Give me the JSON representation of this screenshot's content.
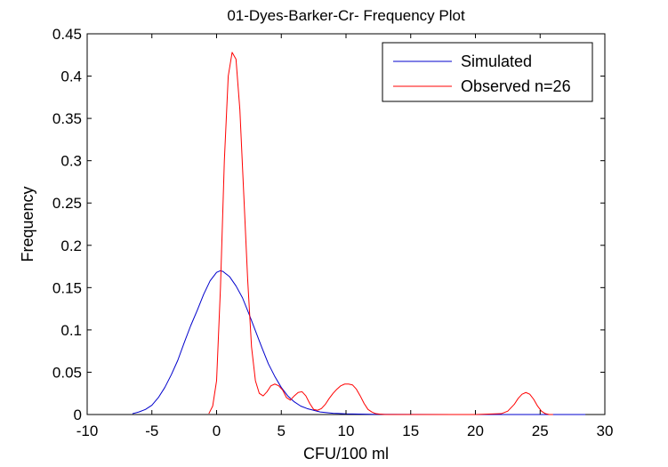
{
  "chart_data": {
    "type": "line",
    "title": "01-Dyes-Barker-Cr- Frequency Plot",
    "xlabel": "CFU/100 ml",
    "ylabel": "Frequency",
    "xlim": [
      -10,
      30
    ],
    "ylim": [
      0,
      0.45
    ],
    "xticks": [
      -10,
      -5,
      0,
      5,
      10,
      15,
      20,
      25,
      30
    ],
    "yticks": [
      0,
      0.05,
      0.1,
      0.15,
      0.2,
      0.25,
      0.3,
      0.35,
      0.4,
      0.45
    ],
    "xtick_labels": [
      "-10",
      "-5",
      "0",
      "5",
      "10",
      "15",
      "20",
      "25",
      "30"
    ],
    "ytick_labels": [
      "0",
      "0.05",
      "0.1",
      "0.15",
      "0.2",
      "0.25",
      "0.3",
      "0.35",
      "0.4",
      "0.45"
    ],
    "grid": false,
    "legend": "top-right",
    "series": [
      {
        "name": "Simulated",
        "color": "#0000cc",
        "x": [
          -6.5,
          -6,
          -5.5,
          -5,
          -4.5,
          -4,
          -3.5,
          -3,
          -2.5,
          -2,
          -1.5,
          -1,
          -0.5,
          0,
          0.3,
          0.5,
          1,
          1.5,
          2,
          2.5,
          3,
          3.5,
          4,
          4.5,
          5,
          5.5,
          6,
          6.5,
          7,
          7.5,
          8,
          9,
          10,
          12,
          15,
          20,
          25,
          28.5
        ],
        "y": [
          0.001,
          0.003,
          0.006,
          0.011,
          0.02,
          0.032,
          0.047,
          0.064,
          0.085,
          0.105,
          0.123,
          0.142,
          0.158,
          0.168,
          0.17,
          0.169,
          0.163,
          0.152,
          0.138,
          0.119,
          0.099,
          0.079,
          0.06,
          0.045,
          0.032,
          0.022,
          0.015,
          0.01,
          0.007,
          0.005,
          0.003,
          0.0015,
          0.0008,
          0.0003,
          0.0001,
          0.0,
          0.0,
          0.0
        ]
      },
      {
        "name": "Observed n=26",
        "color": "#ff0000",
        "x": [
          -0.6,
          -0.3,
          0,
          0.3,
          0.6,
          0.9,
          1.2,
          1.5,
          1.8,
          2.1,
          2.4,
          2.7,
          3.0,
          3.3,
          3.6,
          3.9,
          4.2,
          4.5,
          4.8,
          5.1,
          5.4,
          5.7,
          6.0,
          6.3,
          6.6,
          6.9,
          7.2,
          7.5,
          7.8,
          8.1,
          8.4,
          8.7,
          9.0,
          9.3,
          9.6,
          9.9,
          10.2,
          10.5,
          10.8,
          11.1,
          11.4,
          11.7,
          12.0,
          12.3,
          12.6,
          13,
          15,
          18,
          20,
          22,
          22.5,
          23,
          23.3,
          23.6,
          23.9,
          24.2,
          24.5,
          24.8,
          25.1,
          25.4,
          25.7,
          26
        ],
        "y": [
          0.001,
          0.01,
          0.04,
          0.15,
          0.3,
          0.4,
          0.428,
          0.42,
          0.36,
          0.26,
          0.16,
          0.08,
          0.04,
          0.025,
          0.022,
          0.027,
          0.034,
          0.036,
          0.034,
          0.029,
          0.02,
          0.017,
          0.022,
          0.026,
          0.027,
          0.022,
          0.013,
          0.006,
          0.005,
          0.007,
          0.012,
          0.019,
          0.025,
          0.03,
          0.034,
          0.036,
          0.036,
          0.035,
          0.03,
          0.022,
          0.013,
          0.006,
          0.003,
          0.001,
          0.0005,
          0.0,
          0.0,
          0.0,
          0.0,
          0.001,
          0.004,
          0.012,
          0.019,
          0.024,
          0.026,
          0.024,
          0.018,
          0.01,
          0.004,
          0.001,
          0.0,
          0.0
        ]
      }
    ]
  }
}
